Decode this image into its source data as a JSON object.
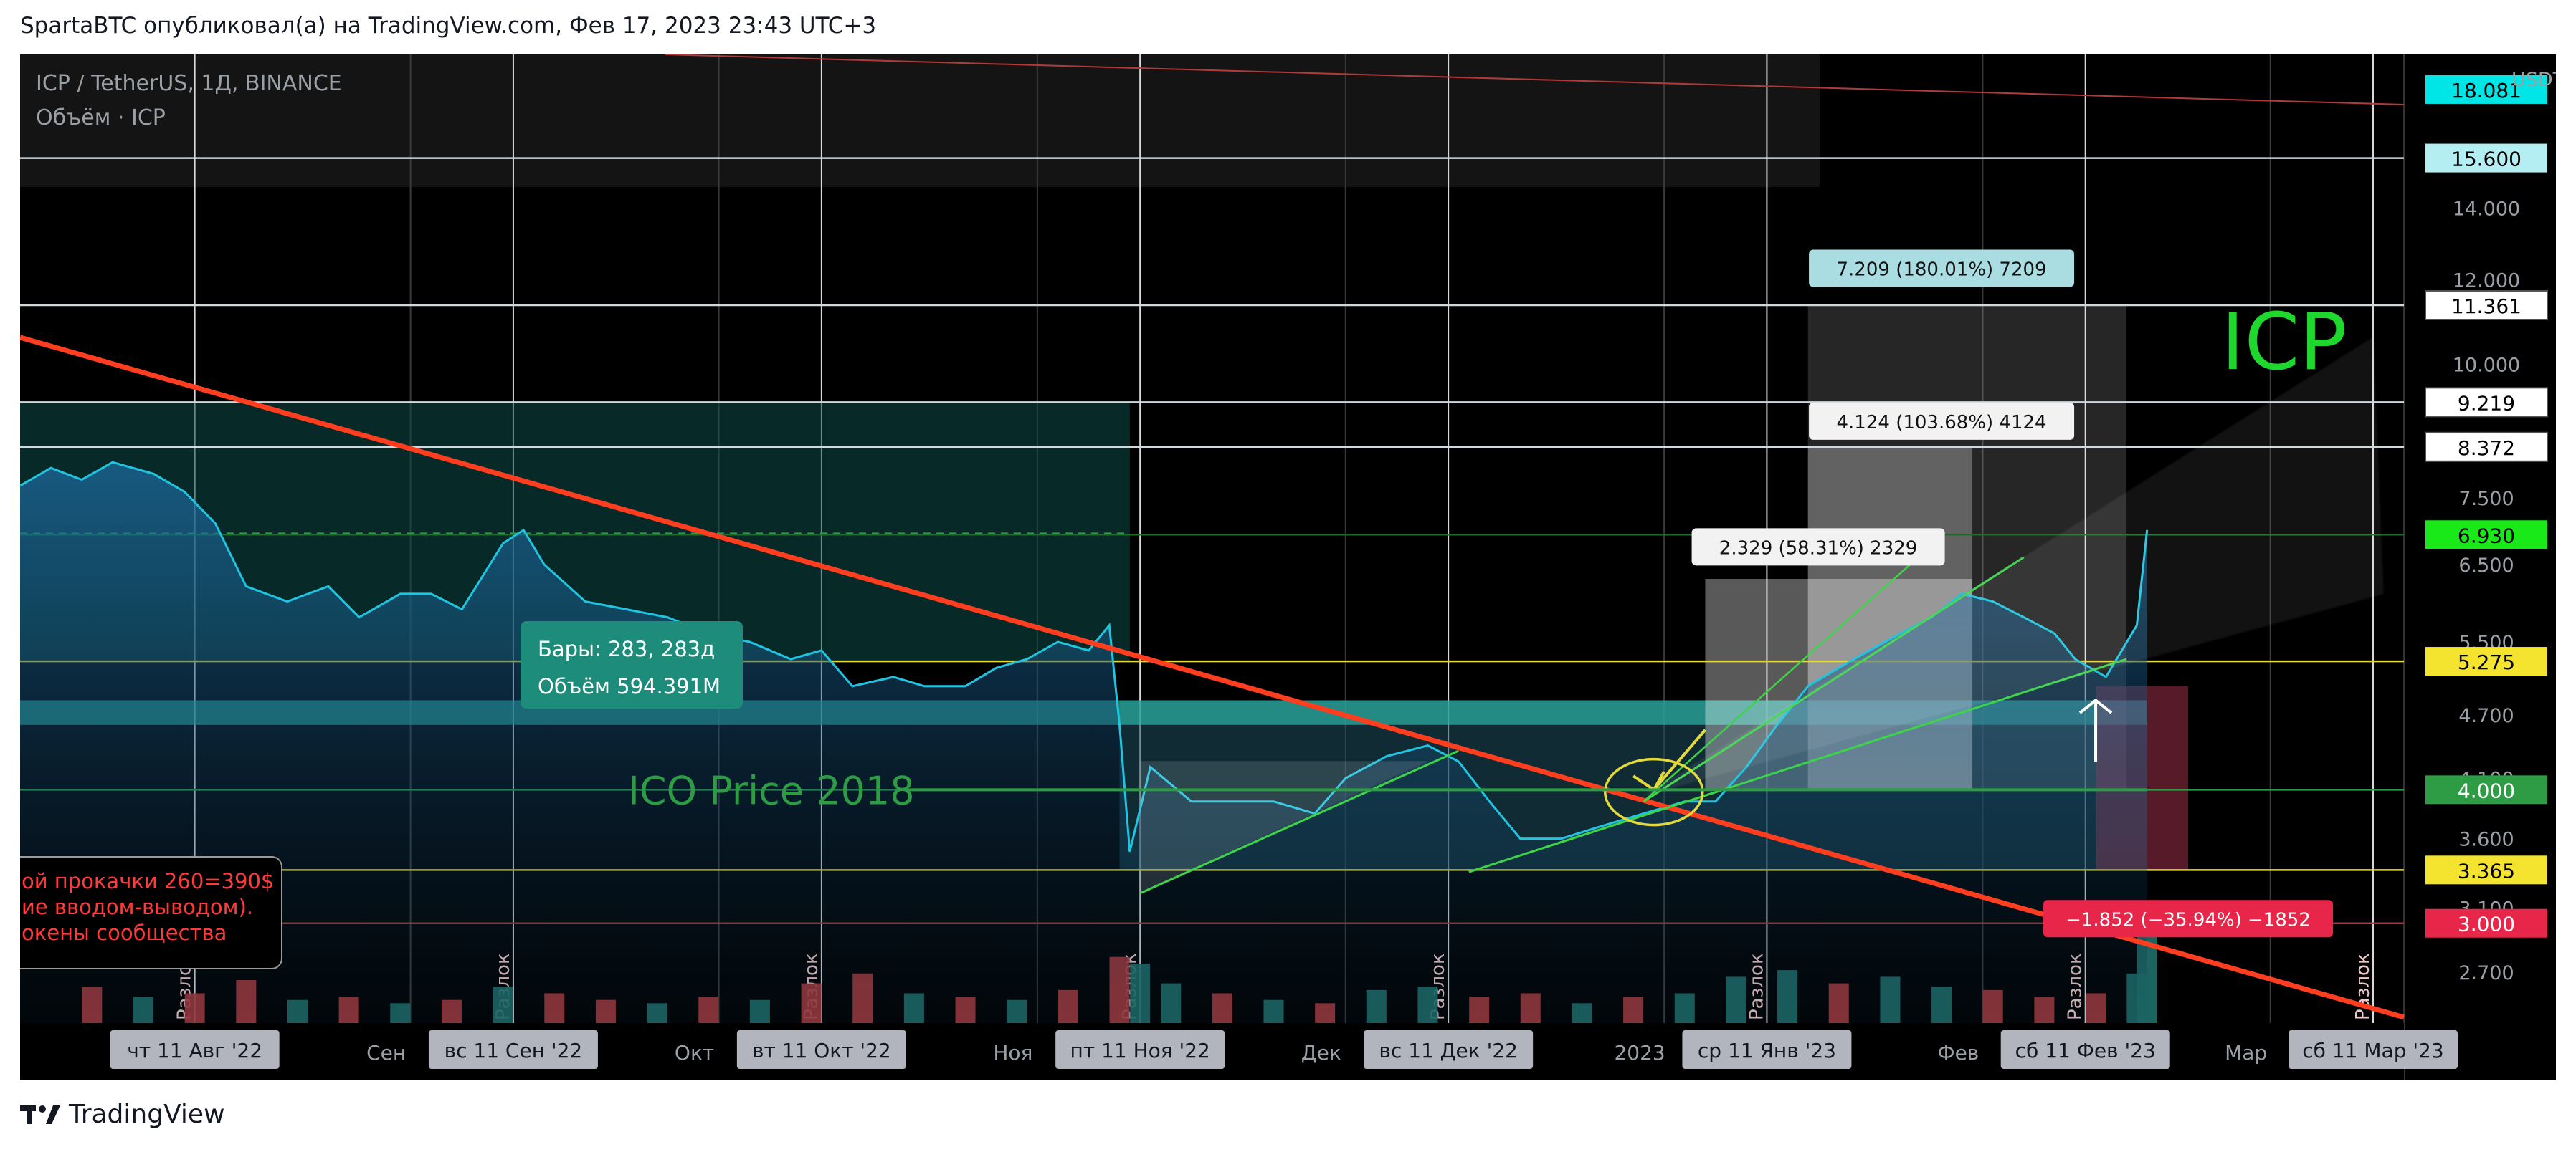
{
  "header": {
    "publish_line": "SpartaBTC опубликовал(а) на TradingView.com, Фев 17, 2023 23:43 UTC+3"
  },
  "footer": {
    "brand": "TradingView",
    "logo_icon": "tradingview-logo-icon"
  },
  "colors": {
    "background": "#000000",
    "price_line": "#21c4e0",
    "trendline_red": "#ff3d1f",
    "level_yellow": "#e3d93b",
    "ico_green": "#2e9b45",
    "icp_label": "#1ed82e",
    "volume_up": "#1f6f6a",
    "volume_down": "#a8383c"
  },
  "chart_data": {
    "type": "line",
    "symbol_title": "ICP / TetherUS, 1Д, BINANCE",
    "volume_title": "Объём · ICP",
    "currency": "USDT",
    "y_scale": "log",
    "ylim": [
      2.55,
      19.5
    ],
    "xlim": [
      "2022-07-25",
      "2023-03-14"
    ],
    "y_ticks": [
      "14.000",
      "12.000",
      "10.000",
      "7.500",
      "6.500",
      "5.500",
      "4.700",
      "4.100",
      "3.600",
      "3.100",
      "2.700"
    ],
    "x_ticks": [
      {
        "date": "2022-09-01",
        "label": "Сен"
      },
      {
        "date": "2022-10-01",
        "label": "Окт"
      },
      {
        "date": "2022-11-01",
        "label": "Ноя"
      },
      {
        "date": "2022-12-01",
        "label": "Дек"
      },
      {
        "date": "2023-01-01",
        "label": "2023"
      },
      {
        "date": "2023-02-01",
        "label": "Фев"
      },
      {
        "date": "2023-03-01",
        "label": "Мар"
      }
    ],
    "x_highlights": [
      {
        "date": "2022-08-11",
        "label": "чт 11 Авг '22"
      },
      {
        "date": "2022-09-11",
        "label": "вс 11 Сен '22"
      },
      {
        "date": "2022-10-11",
        "label": "вт 11 Окт '22"
      },
      {
        "date": "2022-11-11",
        "label": "пт 11 Ноя '22"
      },
      {
        "date": "2022-12-11",
        "label": "вс 11 Дек '22"
      },
      {
        "date": "2023-01-11",
        "label": "ср 11 Янв '23"
      },
      {
        "date": "2023-02-11",
        "label": "сб 11 Фев '23"
      },
      {
        "date": "2023-03-11",
        "label": "сб 11 Мар '23"
      }
    ],
    "sessions": [
      {
        "date": "2022-08-11",
        "label": "Разлок"
      },
      {
        "date": "2022-09-11",
        "label": "Разлок"
      },
      {
        "date": "2022-10-11",
        "label": "Разлок"
      },
      {
        "date": "2022-11-11",
        "label": "Разлок"
      },
      {
        "date": "2022-12-11",
        "label": "Разлок"
      },
      {
        "date": "2023-01-11",
        "label": "Разлок"
      },
      {
        "date": "2023-02-11",
        "label": "Разлок"
      },
      {
        "date": "2023-03-11",
        "label": "Разлок"
      }
    ],
    "price_series": {
      "name": "ICP / TetherUS",
      "points": [
        [
          "2022-07-25",
          7.7
        ],
        [
          "2022-07-28",
          8.0
        ],
        [
          "2022-07-31",
          7.8
        ],
        [
          "2022-08-03",
          8.1
        ],
        [
          "2022-08-07",
          7.9
        ],
        [
          "2022-08-10",
          7.6
        ],
        [
          "2022-08-13",
          7.1
        ],
        [
          "2022-08-16",
          6.2
        ],
        [
          "2022-08-20",
          6.0
        ],
        [
          "2022-08-24",
          6.2
        ],
        [
          "2022-08-27",
          5.8
        ],
        [
          "2022-08-31",
          6.1
        ],
        [
          "2022-09-03",
          6.1
        ],
        [
          "2022-09-06",
          5.9
        ],
        [
          "2022-09-10",
          6.8
        ],
        [
          "2022-09-12",
          7.0
        ],
        [
          "2022-09-14",
          6.5
        ],
        [
          "2022-09-18",
          6.0
        ],
        [
          "2022-09-22",
          5.9
        ],
        [
          "2022-09-26",
          5.8
        ],
        [
          "2022-09-30",
          5.6
        ],
        [
          "2022-10-04",
          5.5
        ],
        [
          "2022-10-08",
          5.3
        ],
        [
          "2022-10-11",
          5.4
        ],
        [
          "2022-10-14",
          5.0
        ],
        [
          "2022-10-18",
          5.1
        ],
        [
          "2022-10-21",
          5.0
        ],
        [
          "2022-10-25",
          5.0
        ],
        [
          "2022-10-28",
          5.2
        ],
        [
          "2022-10-31",
          5.3
        ],
        [
          "2022-11-03",
          5.5
        ],
        [
          "2022-11-06",
          5.4
        ],
        [
          "2022-11-08",
          5.7
        ],
        [
          "2022-11-09",
          4.6
        ],
        [
          "2022-11-10",
          3.5
        ],
        [
          "2022-11-12",
          4.2
        ],
        [
          "2022-11-16",
          3.9
        ],
        [
          "2022-11-20",
          3.9
        ],
        [
          "2022-11-24",
          3.9
        ],
        [
          "2022-11-28",
          3.8
        ],
        [
          "2022-12-01",
          4.1
        ],
        [
          "2022-12-05",
          4.3
        ],
        [
          "2022-12-09",
          4.4
        ],
        [
          "2022-12-12",
          4.25
        ],
        [
          "2022-12-15",
          3.9
        ],
        [
          "2022-12-18",
          3.6
        ],
        [
          "2022-12-22",
          3.6
        ],
        [
          "2022-12-26",
          3.7
        ],
        [
          "2022-12-30",
          3.8
        ],
        [
          "2023-01-03",
          3.9
        ],
        [
          "2023-01-06",
          3.9
        ],
        [
          "2023-01-09",
          4.2
        ],
        [
          "2023-01-12",
          4.6
        ],
        [
          "2023-01-15",
          5.0
        ],
        [
          "2023-01-18",
          5.2
        ],
        [
          "2023-01-21",
          5.4
        ],
        [
          "2023-01-24",
          5.6
        ],
        [
          "2023-01-27",
          5.8
        ],
        [
          "2023-01-30",
          6.1
        ],
        [
          "2023-02-02",
          6.0
        ],
        [
          "2023-02-05",
          5.8
        ],
        [
          "2023-02-08",
          5.6
        ],
        [
          "2023-02-10",
          5.3
        ],
        [
          "2023-02-13",
          5.1
        ],
        [
          "2023-02-16",
          5.7
        ],
        [
          "2023-02-17",
          7.0
        ]
      ]
    },
    "volume_series": [
      {
        "date": "2022-08-01",
        "value": 0.55,
        "up": false
      },
      {
        "date": "2022-08-06",
        "value": 0.4,
        "up": true
      },
      {
        "date": "2022-08-11",
        "value": 0.45,
        "up": false
      },
      {
        "date": "2022-08-16",
        "value": 0.65,
        "up": false
      },
      {
        "date": "2022-08-21",
        "value": 0.35,
        "up": true
      },
      {
        "date": "2022-08-26",
        "value": 0.4,
        "up": false
      },
      {
        "date": "2022-08-31",
        "value": 0.3,
        "up": true
      },
      {
        "date": "2022-09-05",
        "value": 0.35,
        "up": false
      },
      {
        "date": "2022-09-10",
        "value": 0.55,
        "up": true
      },
      {
        "date": "2022-09-15",
        "value": 0.45,
        "up": false
      },
      {
        "date": "2022-09-20",
        "value": 0.35,
        "up": false
      },
      {
        "date": "2022-09-25",
        "value": 0.3,
        "up": true
      },
      {
        "date": "2022-09-30",
        "value": 0.4,
        "up": false
      },
      {
        "date": "2022-10-05",
        "value": 0.35,
        "up": true
      },
      {
        "date": "2022-10-10",
        "value": 0.6,
        "up": false
      },
      {
        "date": "2022-10-15",
        "value": 0.75,
        "up": false
      },
      {
        "date": "2022-10-20",
        "value": 0.45,
        "up": true
      },
      {
        "date": "2022-10-25",
        "value": 0.4,
        "up": false
      },
      {
        "date": "2022-10-30",
        "value": 0.35,
        "up": true
      },
      {
        "date": "2022-11-04",
        "value": 0.5,
        "up": false
      },
      {
        "date": "2022-11-09",
        "value": 1.0,
        "up": false
      },
      {
        "date": "2022-11-11",
        "value": 0.9,
        "up": true
      },
      {
        "date": "2022-11-14",
        "value": 0.6,
        "up": true
      },
      {
        "date": "2022-11-19",
        "value": 0.45,
        "up": false
      },
      {
        "date": "2022-11-24",
        "value": 0.35,
        "up": true
      },
      {
        "date": "2022-11-29",
        "value": 0.3,
        "up": false
      },
      {
        "date": "2022-12-04",
        "value": 0.5,
        "up": true
      },
      {
        "date": "2022-12-09",
        "value": 0.55,
        "up": true
      },
      {
        "date": "2022-12-14",
        "value": 0.4,
        "up": false
      },
      {
        "date": "2022-12-19",
        "value": 0.45,
        "up": false
      },
      {
        "date": "2022-12-24",
        "value": 0.3,
        "up": true
      },
      {
        "date": "2022-12-29",
        "value": 0.4,
        "up": false
      },
      {
        "date": "2023-01-03",
        "value": 0.45,
        "up": true
      },
      {
        "date": "2023-01-08",
        "value": 0.7,
        "up": true
      },
      {
        "date": "2023-01-13",
        "value": 0.8,
        "up": true
      },
      {
        "date": "2023-01-18",
        "value": 0.6,
        "up": false
      },
      {
        "date": "2023-01-23",
        "value": 0.7,
        "up": true
      },
      {
        "date": "2023-01-28",
        "value": 0.55,
        "up": true
      },
      {
        "date": "2023-02-02",
        "value": 0.5,
        "up": false
      },
      {
        "date": "2023-02-07",
        "value": 0.4,
        "up": false
      },
      {
        "date": "2023-02-12",
        "value": 0.45,
        "up": false
      },
      {
        "date": "2023-02-16",
        "value": 0.75,
        "up": true
      },
      {
        "date": "2023-02-17",
        "value": 1.3,
        "up": true
      }
    ]
  },
  "price_labels": [
    {
      "value": 18.081,
      "text": "18.081",
      "bg": "#00e6e6",
      "fg": "#000000",
      "style": "filled"
    },
    {
      "value": 15.6,
      "text": "15.600",
      "bg": "#b5eef2",
      "fg": "#000000",
      "style": "filled"
    },
    {
      "value": 11.361,
      "text": "11.361",
      "bg": "#ffffff",
      "fg": "#000000",
      "style": "box"
    },
    {
      "value": 9.219,
      "text": "9.219",
      "bg": "#ffffff",
      "fg": "#000000",
      "style": "box"
    },
    {
      "value": 8.372,
      "text": "8.372",
      "bg": "#ffffff",
      "fg": "#000000",
      "style": "box"
    },
    {
      "value": 6.93,
      "text": "6.930",
      "bg": "#19e819",
      "fg": "#000000",
      "style": "filled"
    },
    {
      "value": 5.275,
      "text": "5.275",
      "bg": "#f5e42f",
      "fg": "#000000",
      "style": "filled"
    },
    {
      "value": 4.0,
      "text": "4.000",
      "bg": "#2e9b45",
      "fg": "#ffffff",
      "style": "filled"
    },
    {
      "value": 3.365,
      "text": "3.365",
      "bg": "#f5e42f",
      "fg": "#000000",
      "style": "filled"
    },
    {
      "value": 3.0,
      "text": "3.000",
      "bg": "#e8264a",
      "fg": "#ffffff",
      "style": "filled"
    }
  ],
  "horizontal_levels": [
    {
      "value": 15.6,
      "color": "#cfd8dc"
    },
    {
      "value": 11.361,
      "color": "#cfd8dc"
    },
    {
      "value": 9.219,
      "color": "#cfd8dc"
    },
    {
      "value": 8.372,
      "color": "#cfd8dc"
    },
    {
      "value": 6.93,
      "color": "#1f6b2a"
    },
    {
      "value": 5.275,
      "color": "#e3d93b"
    },
    {
      "value": 4.0,
      "color": "#2e9b45"
    },
    {
      "value": 3.365,
      "color": "#e3d93b"
    },
    {
      "value": 3.0,
      "color": "#a8383c"
    }
  ],
  "measure_labels": [
    {
      "text": "7.209 (180.01%) 7209",
      "date": "2023-01-28",
      "value": 12.3,
      "bg": "#a9dde2"
    },
    {
      "text": "4.124 (103.68%) 4124",
      "date": "2023-01-28",
      "value": 8.85,
      "bg": "#f2f2f2"
    },
    {
      "text": "2.329 (58.31%) 2329",
      "date": "2023-01-16",
      "value": 6.75,
      "bg": "#f2f2f2"
    },
    {
      "text": "−1.852 (−35.94%) −1852",
      "date": "2023-02-21",
      "value": 3.03,
      "bg": "#e8264a"
    }
  ],
  "range_info": {
    "bars": "Бары: 283, 283д",
    "volume": "Объём 594.391M"
  },
  "annotations": {
    "ico_price": "ICO Price 2018",
    "icp_text": "ICP",
    "note_lines": [
      "ой прокачки 260=390$",
      "ие вводом-выводом).",
      "окены сообщества"
    ]
  }
}
